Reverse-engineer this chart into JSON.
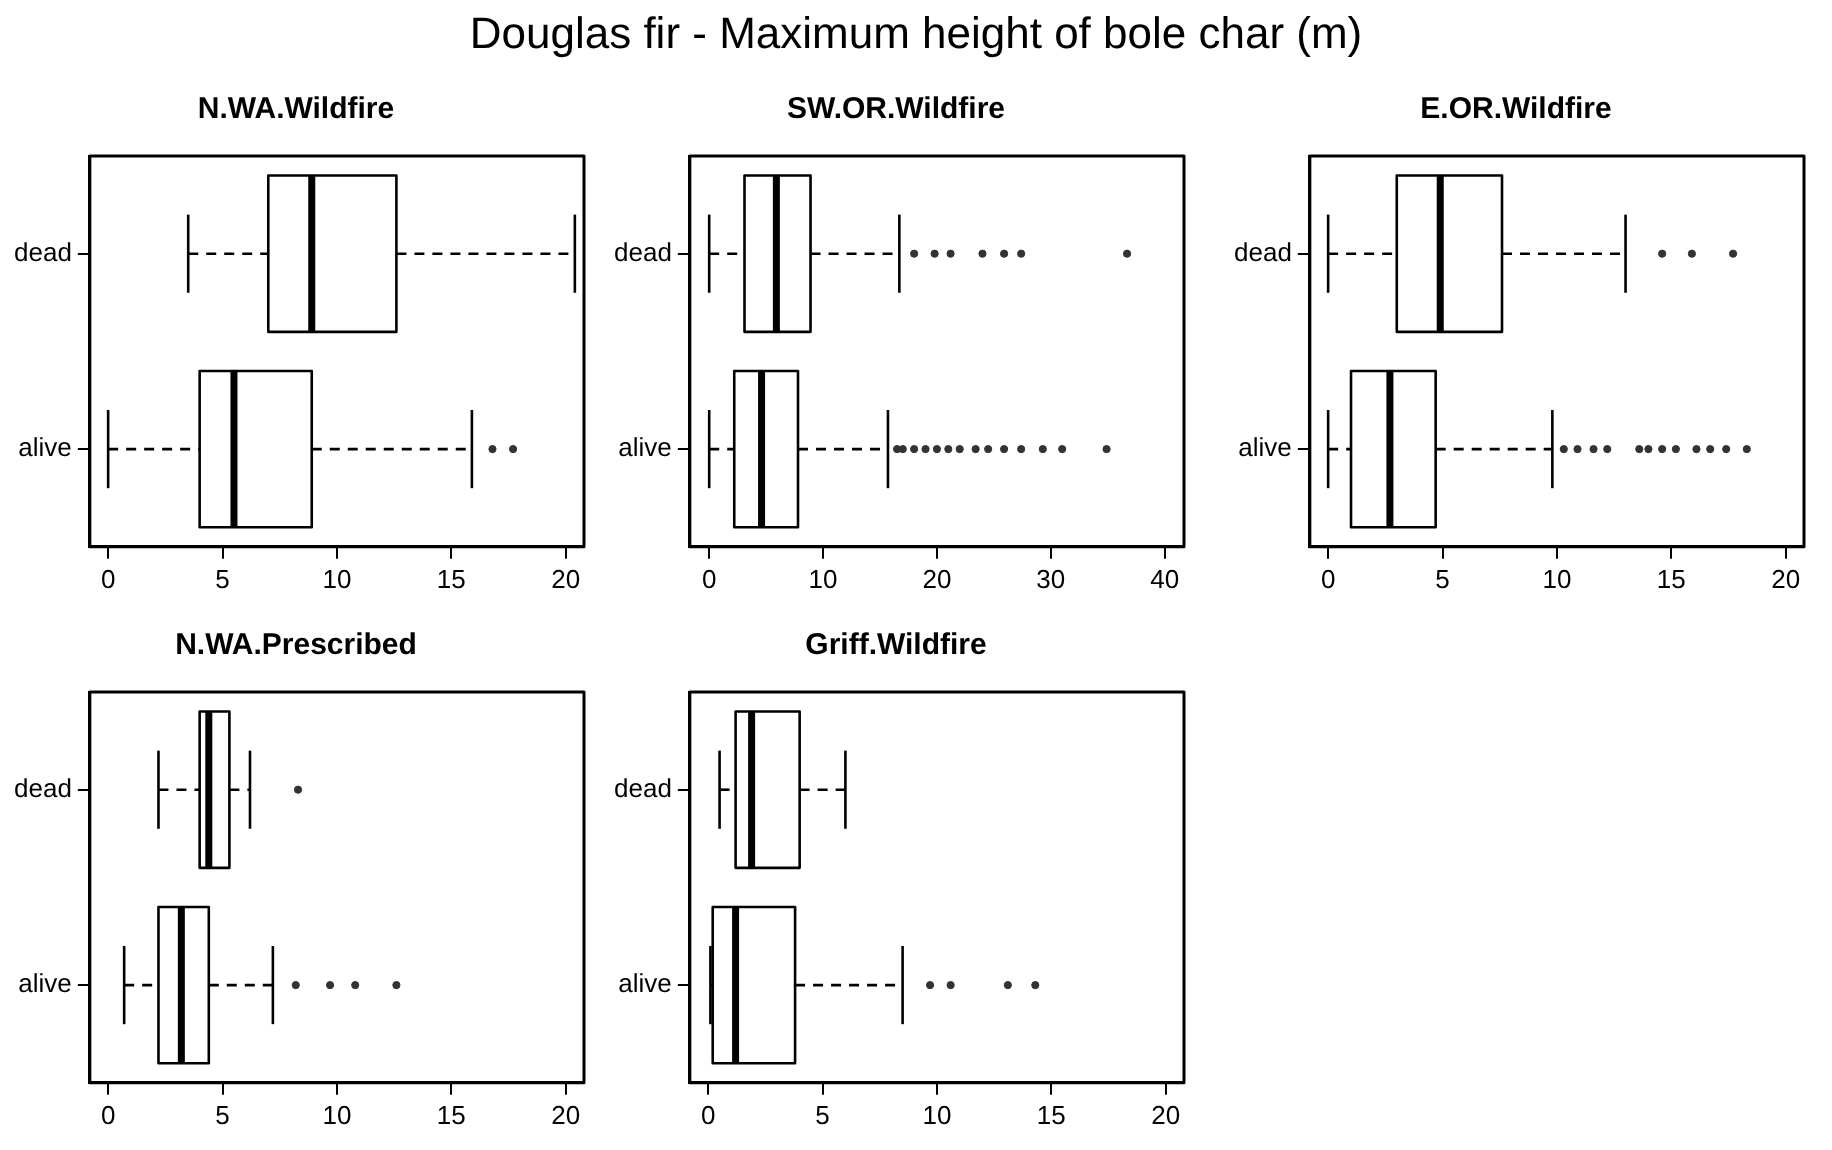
{
  "chart_data": [
    {
      "type": "box",
      "title": "N.WA.Wildfire",
      "annotations": [
        "Douglas fir - Maximum height of bole char (m)"
      ],
      "orientation": "horizontal",
      "categories": [
        "dead",
        "alive"
      ],
      "xlim": [
        -0.8,
        20.8
      ],
      "xticks": [
        0,
        5,
        10,
        15,
        20
      ],
      "grid": false,
      "legend": false,
      "boxes": [
        {
          "low": 3.5,
          "q1": 7.0,
          "median": 8.9,
          "q3": 12.6,
          "high": 20.4
        },
        {
          "low": 0,
          "q1": 4.0,
          "median": 5.5,
          "q3": 8.9,
          "high": 15.9,
          "outliers": [
            16.8,
            17.7
          ]
        }
      ]
    },
    {
      "type": "box",
      "title": "SW.OR.Wildfire",
      "orientation": "horizontal",
      "categories": [
        "dead",
        "alive"
      ],
      "xlim": [
        -1.7,
        41.7
      ],
      "xticks": [
        0,
        10,
        20,
        30,
        40
      ],
      "grid": false,
      "legend": false,
      "boxes": [
        {
          "low": 0,
          "q1": 3.1,
          "median": 5.9,
          "q3": 8.9,
          "high": 16.7,
          "outliers": [
            18,
            19.8,
            21.2,
            24,
            25.9,
            27.4,
            36.7
          ]
        },
        {
          "low": 0,
          "q1": 2.2,
          "median": 4.6,
          "q3": 7.8,
          "high": 15.7,
          "outliers": [
            16.5,
            17,
            18,
            19,
            20,
            21,
            22,
            23.4,
            24.5,
            25.9,
            27.4,
            29.3,
            31,
            34.9
          ]
        }
      ]
    },
    {
      "type": "box",
      "title": "E.OR.Wildfire",
      "orientation": "horizontal",
      "categories": [
        "dead",
        "alive"
      ],
      "xlim": [
        -0.8,
        20.8
      ],
      "xticks": [
        0,
        5,
        10,
        15,
        20
      ],
      "grid": false,
      "legend": false,
      "boxes": [
        {
          "low": 0,
          "q1": 3.0,
          "median": 4.9,
          "q3": 7.6,
          "high": 13.0,
          "outliers": [
            14.6,
            15.9,
            17.7
          ]
        },
        {
          "low": 0,
          "q1": 1.0,
          "median": 2.7,
          "q3": 4.7,
          "high": 9.8,
          "outliers": [
            10.3,
            10.9,
            11.6,
            12.2,
            13.6,
            14.0,
            14.6,
            15.2,
            16.1,
            16.7,
            17.4,
            18.3
          ]
        }
      ]
    },
    {
      "type": "box",
      "title": "N.WA.Prescribed",
      "orientation": "horizontal",
      "categories": [
        "dead",
        "alive"
      ],
      "xlim": [
        -0.8,
        20.8
      ],
      "xticks": [
        0,
        5,
        10,
        15,
        20
      ],
      "grid": false,
      "legend": false,
      "boxes": [
        {
          "low": 2.2,
          "q1": 4.0,
          "median": 4.4,
          "q3": 5.3,
          "high": 6.2,
          "outliers": [
            8.3
          ]
        },
        {
          "low": 0.7,
          "q1": 2.2,
          "median": 3.2,
          "q3": 4.4,
          "high": 7.2,
          "outliers": [
            8.2,
            9.7,
            10.8,
            12.6
          ]
        }
      ]
    },
    {
      "type": "box",
      "title": "Griff.Wildfire",
      "orientation": "horizontal",
      "categories": [
        "dead",
        "alive"
      ],
      "xlim": [
        -0.8,
        20.8
      ],
      "xticks": [
        0,
        5,
        10,
        15,
        20
      ],
      "grid": false,
      "legend": false,
      "boxes": [
        {
          "low": 0.5,
          "q1": 1.2,
          "median": 1.9,
          "q3": 4.0,
          "high": 6.0
        },
        {
          "low": 0.1,
          "q1": 0.2,
          "median": 1.2,
          "q3": 3.8,
          "high": 8.5,
          "outliers": [
            9.7,
            10.6,
            13.1,
            14.3
          ]
        }
      ]
    }
  ]
}
